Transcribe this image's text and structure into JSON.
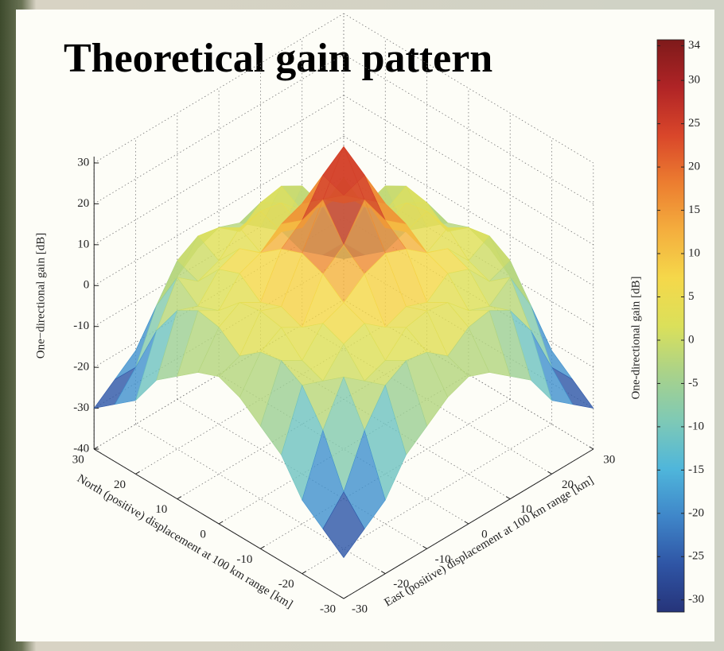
{
  "chart_data": {
    "type": "surface",
    "title": "Theoretical gain pattern",
    "xlabel": "East (positive) displacement at 100 km range [km]",
    "ylabel": "North (positive) displacement at 100 km range [km]",
    "zlabel": "One−directional gain [dB]",
    "x": [
      -30,
      -25,
      -20,
      -15,
      -10,
      -5,
      0,
      5,
      10,
      15,
      20,
      25,
      30
    ],
    "y": [
      -30,
      -25,
      -20,
      -15,
      -10,
      -5,
      0,
      5,
      10,
      15,
      20,
      25,
      30
    ],
    "z": [
      [
        -30,
        -26,
        -22,
        -14,
        -10,
        -6,
        -4,
        -6,
        -10,
        -14,
        -22,
        -26,
        -30
      ],
      [
        -26,
        -20,
        -8,
        0,
        3,
        2,
        -2,
        2,
        3,
        0,
        -8,
        -20,
        -26
      ],
      [
        -22,
        -8,
        2,
        -2,
        0,
        5,
        6,
        5,
        0,
        -2,
        2,
        -8,
        -22
      ],
      [
        -14,
        0,
        -2,
        4,
        6,
        2,
        4,
        2,
        6,
        4,
        -2,
        0,
        -14
      ],
      [
        -10,
        3,
        0,
        6,
        8,
        12,
        14,
        12,
        8,
        6,
        0,
        3,
        -10
      ],
      [
        -6,
        2,
        5,
        2,
        12,
        16,
        24,
        16,
        12,
        2,
        5,
        2,
        -6
      ],
      [
        -4,
        -2,
        6,
        4,
        14,
        24,
        34,
        24,
        14,
        4,
        6,
        -2,
        -4
      ],
      [
        -6,
        2,
        5,
        2,
        12,
        16,
        24,
        16,
        12,
        2,
        5,
        2,
        -6
      ],
      [
        -10,
        3,
        0,
        6,
        8,
        12,
        14,
        12,
        8,
        6,
        0,
        3,
        -10
      ],
      [
        -14,
        0,
        -2,
        4,
        6,
        2,
        4,
        2,
        6,
        4,
        -2,
        0,
        -14
      ],
      [
        -22,
        -8,
        2,
        -2,
        0,
        5,
        6,
        5,
        0,
        -2,
        2,
        -8,
        -22
      ],
      [
        -26,
        -20,
        -8,
        0,
        3,
        2,
        -2,
        2,
        3,
        0,
        -8,
        -20,
        -26
      ],
      [
        -30,
        -26,
        -22,
        -14,
        -10,
        -6,
        -4,
        -6,
        -10,
        -14,
        -22,
        -26,
        -30
      ]
    ],
    "xlim": [
      -30,
      30
    ],
    "xticks": [
      -30,
      -20,
      -10,
      0,
      10,
      20,
      30
    ],
    "ylim": [
      -30,
      30
    ],
    "yticks": [
      -30,
      -20,
      -10,
      0,
      10,
      20,
      30
    ],
    "zlim": [
      -40,
      34
    ],
    "zticks": [
      -40,
      -30,
      -20,
      -10,
      0,
      10,
      20,
      30
    ],
    "grid": true,
    "colorbar": {
      "label": "One-directional gain [dB]",
      "clim": [
        -31.4,
        34.7
      ],
      "ticks": [
        -30,
        -25,
        -20,
        -15,
        -10,
        -5,
        0,
        5,
        10,
        15,
        20,
        25,
        30,
        34
      ]
    },
    "colormap": [
      "#26347a",
      "#2f55a5",
      "#3f86c9",
      "#4fb6db",
      "#7ec9b6",
      "#a9d28a",
      "#dbe05a",
      "#f5d84a",
      "#f4ae3e",
      "#ec7d30",
      "#d9462a",
      "#b02426",
      "#7e1a1a"
    ]
  }
}
